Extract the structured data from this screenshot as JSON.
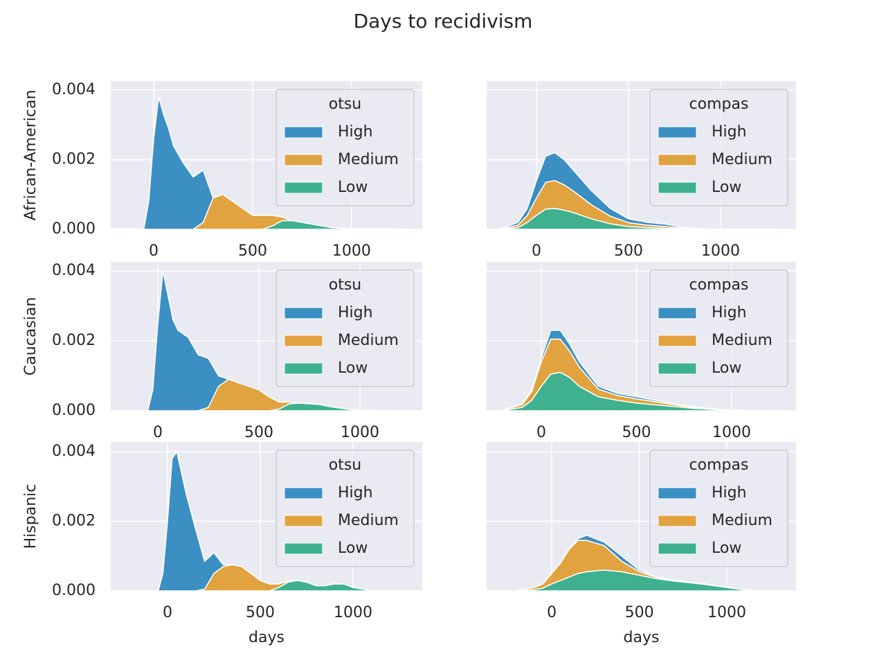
{
  "title": "Days to recidivism",
  "chart_data": [
    {
      "type": "stacked-area",
      "ylabel": "African-American",
      "legend_title": "otsu",
      "legend": "upper right",
      "grid": true,
      "xlim": [
        -217,
        1357
      ],
      "xticks": [
        0,
        500,
        1000
      ],
      "ylim": [
        0,
        0.00426
      ],
      "yticks": [
        {
          "value": 0,
          "label": "0.000"
        },
        0.002,
        0.004
      ],
      "x": [
        -200,
        -100,
        -50,
        -25,
        0,
        25,
        50,
        75,
        100,
        150,
        200,
        250,
        300,
        350,
        400,
        450,
        500,
        550,
        600,
        650,
        700,
        750,
        800,
        850,
        900,
        950,
        1000,
        1100,
        1200,
        1300
      ],
      "series": [
        {
          "name": "High",
          "color": "#3b8fc2",
          "values": [
            0,
            0,
            0,
            0.0008,
            0.0026,
            0.0038,
            0.0033,
            0.0029,
            0.0024,
            0.0019,
            0.0015,
            0.0015,
            0,
            0,
            0,
            0,
            0,
            0,
            0,
            0,
            0,
            0,
            0,
            0,
            0,
            0,
            0,
            0,
            0,
            0
          ]
        },
        {
          "name": "Medium",
          "color": "#e1a33f",
          "values": [
            0,
            0,
            0,
            0,
            0,
            0,
            0,
            0,
            0,
            0,
            0,
            0.0002,
            0.0009,
            0.001,
            0.0008,
            0.0006,
            0.0004,
            0.0004,
            0.0003,
            0.0001,
            0,
            0,
            0,
            0,
            0,
            0,
            0,
            0,
            0,
            0
          ]
        },
        {
          "name": "Low",
          "color": "#3fb18f",
          "values": [
            1e-05,
            1e-05,
            0,
            0,
            0,
            0,
            0,
            0,
            0,
            0,
            0,
            0,
            0,
            0,
            0,
            0,
            0,
            0,
            0.0001,
            0.00025,
            0.00025,
            0.0002,
            0.00015,
            0.0001,
            5e-05,
            3e-05,
            2e-05,
            1e-05,
            1e-05,
            0
          ]
        }
      ]
    },
    {
      "type": "stacked-area",
      "legend_title": "compas",
      "legend": "upper right",
      "grid": true,
      "show_ytick_labels": false,
      "xlim": [
        -271,
        1410
      ],
      "xticks": [
        0,
        500,
        1000
      ],
      "ylim": [
        0,
        0.00426
      ],
      "yticks": [
        {
          "value": 0,
          "label": "0.000"
        },
        0.002,
        0.004
      ],
      "x": [
        -200,
        -100,
        -50,
        0,
        50,
        100,
        150,
        200,
        300,
        400,
        500,
        600,
        700,
        800,
        900,
        1000,
        1100,
        1200,
        1300
      ],
      "series": [
        {
          "name": "High",
          "color": "#3b8fc2",
          "values": [
            0,
            8e-05,
            0.0002,
            0.0005,
            0.00075,
            0.0008,
            0.00072,
            0.0006,
            0.0004,
            0.00022,
            0.00011,
            8e-05,
            7e-05,
            2e-05,
            5e-06,
            0,
            0,
            0,
            0
          ]
        },
        {
          "name": "Medium",
          "color": "#e1a33f",
          "values": [
            0,
            7e-05,
            0.0002,
            0.0005,
            0.00077,
            0.0008,
            0.00073,
            0.00062,
            0.0004,
            0.00022,
            0.00011,
            7e-05,
            5e-05,
            2e-05,
            5e-06,
            0,
            0,
            0,
            0
          ]
        },
        {
          "name": "Low",
          "color": "#3fb18f",
          "values": [
            0,
            5e-05,
            0.0002,
            0.0004,
            0.00058,
            0.0006,
            0.00055,
            0.00048,
            0.0003,
            0.00016,
            8e-05,
            5e-05,
            3e-05,
            1e-05,
            0,
            0,
            0,
            0,
            0
          ]
        }
      ]
    },
    {
      "type": "stacked-area",
      "ylabel": "Caucasian",
      "legend_title": "otsu",
      "legend": "upper right",
      "grid": true,
      "xlim": [
        -233,
        1308
      ],
      "xticks": [
        0,
        500,
        1000
      ],
      "ylim": [
        0,
        0.00426
      ],
      "yticks": [
        {
          "value": 0,
          "label": "0.000"
        },
        0.002,
        0.004
      ],
      "x": [
        -200,
        -100,
        -50,
        -25,
        0,
        25,
        50,
        75,
        100,
        150,
        200,
        250,
        300,
        350,
        400,
        450,
        500,
        550,
        600,
        650,
        700,
        750,
        800,
        850,
        900,
        950,
        1000,
        1100,
        1200,
        1300
      ],
      "series": [
        {
          "name": "High",
          "color": "#3b8fc2",
          "values": [
            0,
            0,
            0,
            0.0006,
            0.0025,
            0.004,
            0.0033,
            0.0026,
            0.0023,
            0.0021,
            0.0016,
            0.0014,
            0.0003,
            0,
            0,
            0,
            0,
            0,
            0,
            0,
            0,
            0,
            0,
            0,
            0,
            0,
            0,
            0,
            0,
            0
          ]
        },
        {
          "name": "Medium",
          "color": "#e1a33f",
          "values": [
            0,
            0,
            0,
            0,
            0,
            0,
            0,
            0,
            0,
            0,
            0,
            0.0001,
            0.0007,
            0.0009,
            0.0008,
            0.0007,
            0.0006,
            0.0004,
            0.0002,
            5e-05,
            0,
            0,
            0,
            0,
            0,
            0,
            0,
            0,
            0,
            0
          ]
        },
        {
          "name": "Low",
          "color": "#3fb18f",
          "values": [
            0,
            0,
            0,
            0,
            0,
            0,
            0,
            0,
            0,
            0,
            0,
            0,
            0,
            0,
            0,
            0,
            0,
            0,
            5e-05,
            0.0002,
            0.00022,
            0.0002,
            0.00018,
            0.00012,
            8e-05,
            4e-05,
            2e-05,
            1e-05,
            0,
            0
          ]
        }
      ]
    },
    {
      "type": "stacked-area",
      "legend_title": "compas",
      "legend": "upper right",
      "grid": true,
      "show_ytick_labels": false,
      "xlim": [
        -287,
        1338
      ],
      "xticks": [
        0,
        500,
        1000
      ],
      "ylim": [
        0,
        0.00426
      ],
      "yticks": [
        {
          "value": 0,
          "label": "0.000"
        },
        0.002,
        0.004
      ],
      "x": [
        -200,
        -100,
        -50,
        0,
        50,
        100,
        150,
        200,
        300,
        400,
        500,
        600,
        700,
        800,
        900,
        1000,
        1100,
        1200,
        1300
      ],
      "series": [
        {
          "name": "High",
          "color": "#3b8fc2",
          "values": [
            0,
            2e-05,
            5e-05,
            0.0001,
            0.00025,
            0.00025,
            0.0002,
            0.00015,
            8e-05,
            6e-05,
            6e-05,
            4e-05,
            3e-05,
            2e-05,
            1e-05,
            0,
            0,
            0,
            0
          ]
        },
        {
          "name": "Medium",
          "color": "#e1a33f",
          "values": [
            1e-05,
            8e-05,
            0.00025,
            0.0007,
            0.001,
            0.00095,
            0.00075,
            0.00055,
            0.00022,
            0.00014,
            0.00012,
            9e-05,
            5e-05,
            3e-05,
            1e-05,
            1e-05,
            1e-05,
            0,
            0
          ]
        },
        {
          "name": "Low",
          "color": "#3fb18f",
          "values": [
            1e-05,
            0.0001,
            0.0003,
            0.0007,
            0.00105,
            0.0011,
            0.00095,
            0.0007,
            0.0004,
            0.0003,
            0.00022,
            0.00017,
            0.00012,
            7e-05,
            4e-05,
            1e-05,
            0,
            0,
            0
          ]
        }
      ]
    },
    {
      "type": "stacked-area",
      "ylabel": "Hispanic",
      "xlabel": "days",
      "legend_title": "otsu",
      "legend": "upper right",
      "grid": true,
      "xlim": [
        -306,
        1373
      ],
      "xticks": [
        0,
        500,
        1000
      ],
      "ylim": [
        0,
        0.00428
      ],
      "yticks": [
        {
          "value": 0,
          "label": "0.000"
        },
        0.002,
        0.004
      ],
      "x": [
        -200,
        -100,
        -50,
        -25,
        0,
        25,
        50,
        75,
        100,
        150,
        200,
        250,
        300,
        350,
        400,
        450,
        500,
        550,
        600,
        650,
        700,
        750,
        800,
        850,
        900,
        950,
        1000,
        1100,
        1200,
        1300
      ],
      "series": [
        {
          "name": "High",
          "color": "#3b8fc2",
          "values": [
            0,
            0,
            0,
            0.0005,
            0.002,
            0.0038,
            0.004,
            0.0034,
            0.0028,
            0.0018,
            0.0008,
            0.0006,
            5e-05,
            0,
            0,
            0,
            0,
            0,
            0,
            0,
            0,
            0,
            0,
            0,
            0,
            0,
            0,
            0,
            0,
            0
          ]
        },
        {
          "name": "Medium",
          "color": "#e1a33f",
          "values": [
            0,
            0,
            0,
            0,
            0,
            0,
            0,
            0,
            0,
            0,
            5e-05,
            0.0005,
            0.0007,
            0.00075,
            0.0007,
            0.0005,
            0.0003,
            0.0002,
            0.0001,
            3e-05,
            0,
            0,
            0,
            0,
            0,
            0,
            0,
            0,
            0,
            0
          ]
        },
        {
          "name": "Low",
          "color": "#3fb18f",
          "values": [
            0,
            0,
            0,
            0,
            0,
            0,
            0,
            0,
            0,
            0,
            0,
            0,
            0,
            0,
            0,
            0,
            0,
            0,
            0.0001,
            0.00025,
            0.0003,
            0.00025,
            0.00015,
            0.00015,
            0.0002,
            0.0002,
            0.0001,
            1e-05,
            0,
            0
          ]
        }
      ]
    },
    {
      "type": "stacked-area",
      "xlabel": "days",
      "legend_title": "compas",
      "legend": "upper right",
      "grid": true,
      "show_ytick_labels": false,
      "xlim": [
        -372,
        1395
      ],
      "xticks": [
        0,
        500,
        1000
      ],
      "ylim": [
        0,
        0.00428
      ],
      "yticks": [
        {
          "value": 0,
          "label": "0.000"
        },
        0.002,
        0.004
      ],
      "x": [
        -200,
        -100,
        -50,
        0,
        50,
        100,
        150,
        200,
        300,
        400,
        500,
        600,
        700,
        800,
        900,
        1000,
        1100,
        1200,
        1300
      ],
      "series": [
        {
          "name": "High",
          "color": "#3b8fc2",
          "values": [
            0,
            0,
            0,
            0,
            1e-05,
            3e-05,
            5e-05,
            0.00015,
            0.0001,
            0.00015,
            5e-05,
            1e-05,
            0,
            0,
            0,
            0,
            0,
            0,
            0
          ]
        },
        {
          "name": "Medium",
          "color": "#e1a33f",
          "values": [
            1e-05,
            6e-05,
            0.00012,
            0.0003,
            0.0005,
            0.0008,
            0.00095,
            0.0009,
            0.0007,
            0.0003,
            0.0001,
            4e-05,
            2e-05,
            2e-05,
            1e-05,
            0,
            0,
            0,
            0
          ]
        },
        {
          "name": "Low",
          "color": "#3fb18f",
          "values": [
            1e-05,
            4e-05,
            8e-05,
            0.0002,
            0.0003,
            0.0004,
            0.0005,
            0.00055,
            0.0006,
            0.00055,
            0.00045,
            0.00035,
            0.00028,
            0.00023,
            0.00017,
            0.0001,
            3e-05,
            0,
            0
          ]
        }
      ]
    }
  ]
}
